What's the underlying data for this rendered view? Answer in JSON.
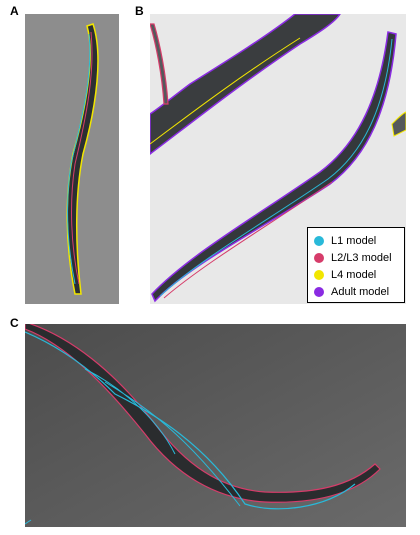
{
  "panels": {
    "a": {
      "label": "A"
    },
    "b": {
      "label": "B"
    },
    "c": {
      "label": "C"
    }
  },
  "legend": {
    "items": [
      {
        "label": "L1 model",
        "color": "#29b9d9"
      },
      {
        "label": "L2/L3 model",
        "color": "#d63c6a"
      },
      {
        "label": "L4 model",
        "color": "#f2e600"
      },
      {
        "label": "Adult model",
        "color": "#8a2be2"
      }
    ]
  }
}
